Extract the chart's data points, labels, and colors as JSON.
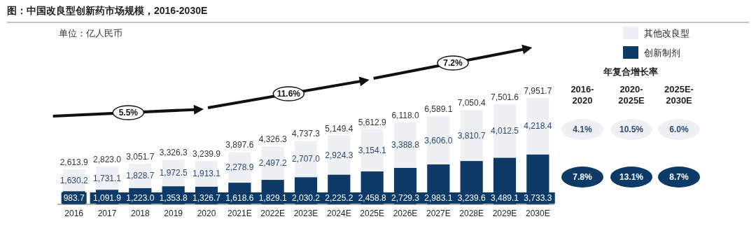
{
  "chart_data": {
    "type": "bar",
    "title": "图：中国改良型创新药市场规模，2016-2030E",
    "subtitle": "单位：亿人民币",
    "stacked": true,
    "legend": "top right",
    "categories": [
      "2016",
      "2017",
      "2018",
      "2019",
      "2020",
      "2021E",
      "2022E",
      "2023E",
      "2024E",
      "2025E",
      "2026E",
      "2027E",
      "2028E",
      "2029E",
      "2030E"
    ],
    "series": [
      {
        "name": "创新制剂",
        "color": "#0d3a66",
        "values": [
          983.7,
          1091.9,
          1223.0,
          1353.8,
          1326.7,
          1618.6,
          1829.1,
          2030.2,
          2225.2,
          2458.8,
          2729.3,
          2983.1,
          3239.6,
          3489.1,
          3733.3
        ],
        "value_labels": [
          "983.7",
          "1,091.9",
          "1,223.0",
          "1,353.8",
          "1,326.7",
          "1,618.6",
          "1,829.1",
          "2,030.2",
          "2,225.2",
          "2,458.8",
          "2,729.3",
          "2,983.1",
          "3,239.6",
          "3,489.1",
          "3,733.3"
        ]
      },
      {
        "name": "其他改良型",
        "color": "#eef0f4",
        "values": [
          1630.2,
          1731.1,
          1828.7,
          1972.5,
          1913.1,
          2278.9,
          2497.2,
          2707.0,
          2924.3,
          3154.1,
          3388.8,
          3606.0,
          3810.7,
          4012.5,
          4218.4
        ],
        "value_labels": [
          "1,630.2",
          "1,731.1",
          "1,828.7",
          "1,972.5",
          "1,913.1",
          "2,278.9",
          "2,497.2",
          "2,707.0",
          "2,924.3",
          "3,154.1",
          "3,388.8",
          "3,606.0",
          "3,810.7",
          "4,012.5",
          "4,218.4"
        ]
      }
    ],
    "totals": [
      "2,613.9",
      "2,823.0",
      "3,051.7",
      "3,326.3",
      "3,239.9",
      "3,897.6",
      "4,326.3",
      "4,737.3",
      "5,149.4",
      "5,612.9",
      "6,118.0",
      "6,589.1",
      "7,050.4",
      "7,501.6",
      "7,951.7"
    ],
    "annotations": [
      "5.5%",
      "11.6%",
      "7.2%",
      "年复合增长率",
      "2016-2020",
      "2020-2025E",
      "2025E-2030E",
      "4.1%",
      "10.5%",
      "6.0%",
      "7.8%",
      "13.1%",
      "8.7%"
    ]
  }
}
